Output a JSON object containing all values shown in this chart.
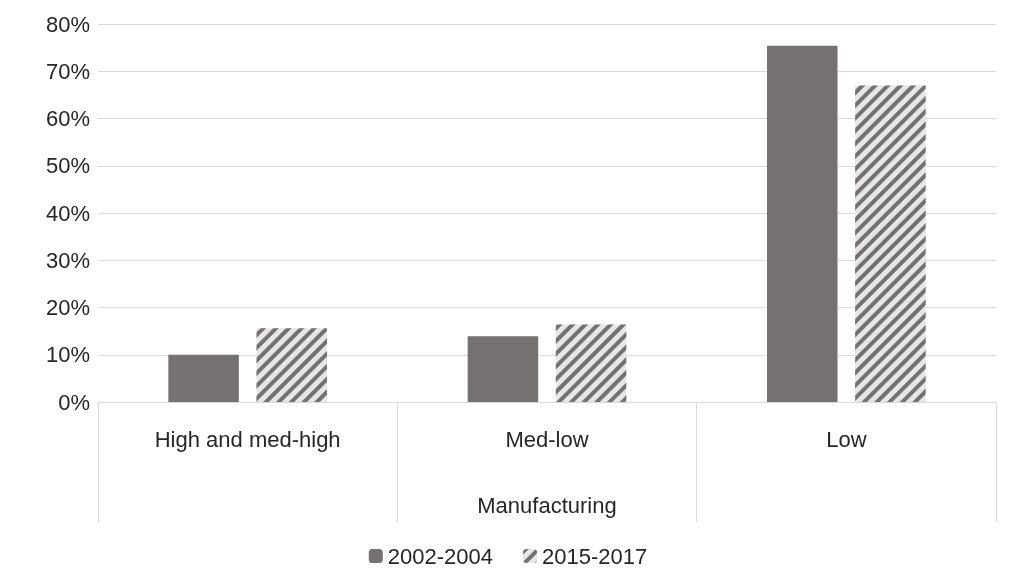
{
  "chart_data": {
    "type": "bar",
    "xlabel": "Manufacturing",
    "categories": [
      "High and med-high",
      "Med-low",
      "Low"
    ],
    "series": [
      {
        "name": "2002-2004",
        "color": "#767171",
        "values": [
          10.0,
          13.9,
          75.4
        ]
      },
      {
        "name": "2015-2017",
        "color": "#767171",
        "values": [
          15.6,
          16.4,
          67.0
        ]
      }
    ],
    "ylim": [
      0,
      80
    ],
    "yticks": [
      {
        "value": 0,
        "label": "0%"
      },
      {
        "value": 10,
        "label": "10%"
      },
      {
        "value": 20,
        "label": "20%"
      },
      {
        "value": 30,
        "label": "30%"
      },
      {
        "value": 40,
        "label": "40%"
      },
      {
        "value": 50,
        "label": "50%"
      },
      {
        "value": 60,
        "label": "60%"
      },
      {
        "value": 70,
        "label": "70%"
      },
      {
        "value": 80,
        "label": "80%"
      }
    ],
    "grid": "y",
    "legend": "bottom"
  }
}
